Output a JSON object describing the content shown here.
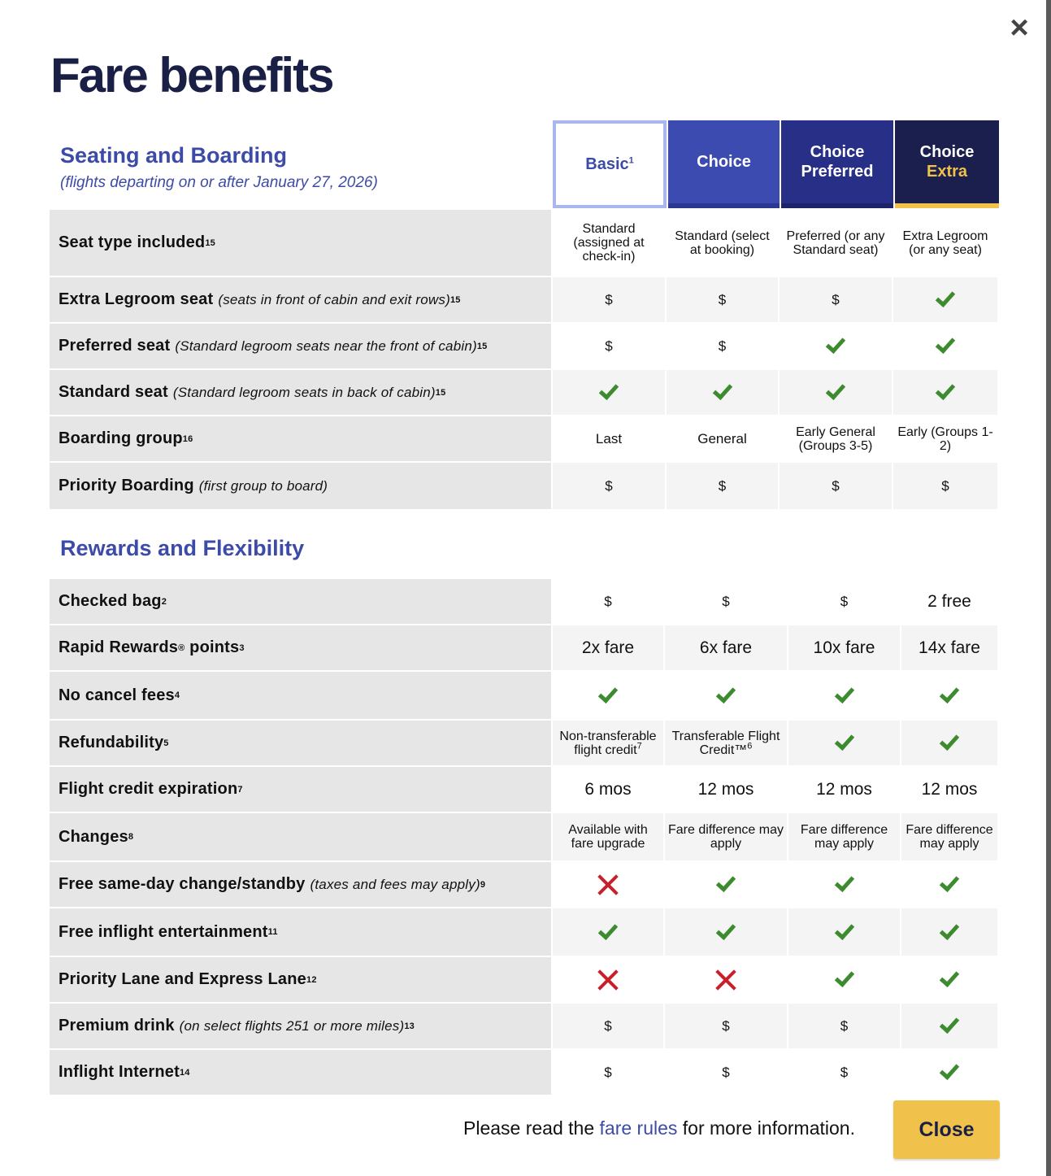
{
  "modal": {
    "title": "Fare benefits",
    "close_icon": "close-icon",
    "close_glyph": "×"
  },
  "fares": {
    "basic": "Basic",
    "basic_sup": "1",
    "choice": "Choice",
    "preferred_line1": "Choice",
    "preferred_line2": "Preferred",
    "extra_line1": "Choice",
    "extra_line2": "Extra"
  },
  "seating": {
    "title": "Seating and Boarding",
    "subtitle": "(flights departing on or after January 27, 2026)",
    "rows": [
      {
        "label": "Seat type included",
        "note": "",
        "sup": "15",
        "cells": [
          {
            "text": "Standard (assigned at check-in)"
          },
          {
            "text": "Standard (select at booking)"
          },
          {
            "text": "Preferred (or any Standard seat)"
          },
          {
            "text": "Extra Legroom (or any seat)"
          }
        ]
      },
      {
        "label": "Extra Legroom seat",
        "note": "(seats in front of cabin and exit rows)",
        "sup": "15",
        "cells": [
          {
            "text": "$"
          },
          {
            "text": "$"
          },
          {
            "text": "$"
          },
          {
            "icon": "check-icon"
          }
        ]
      },
      {
        "label": "Preferred seat",
        "note": "(Standard legroom seats near the front of cabin)",
        "sup": "15",
        "cells": [
          {
            "text": "$"
          },
          {
            "text": "$"
          },
          {
            "icon": "check-icon"
          },
          {
            "icon": "check-icon"
          }
        ]
      },
      {
        "label": "Standard seat",
        "note": "(Standard legroom seats in back of cabin)",
        "sup": "15",
        "cells": [
          {
            "icon": "check-icon"
          },
          {
            "icon": "check-icon"
          },
          {
            "icon": "check-icon"
          },
          {
            "icon": "check-icon"
          }
        ]
      },
      {
        "label": "Boarding group",
        "note": "",
        "sup": "16",
        "cells": [
          {
            "text": "Last"
          },
          {
            "text": "General"
          },
          {
            "text": "Early General (Groups 3-5)"
          },
          {
            "text": "Early (Groups 1-2)"
          }
        ]
      },
      {
        "label": "Priority Boarding",
        "note": "(first group to board)",
        "sup": "",
        "cells": [
          {
            "text": "$"
          },
          {
            "text": "$"
          },
          {
            "text": "$"
          },
          {
            "text": "$"
          }
        ]
      }
    ]
  },
  "rewards": {
    "title": "Rewards and Flexibility",
    "rows": [
      {
        "label": "Checked bag",
        "note": "",
        "sup": "2",
        "cells": [
          {
            "text": "$"
          },
          {
            "text": "$"
          },
          {
            "text": "$"
          },
          {
            "text": "2 free"
          }
        ]
      },
      {
        "label": "Rapid Rewards",
        "label_reg": "®",
        "label_tail": " points",
        "note": "",
        "sup": "3",
        "cells": [
          {
            "text": "2x fare"
          },
          {
            "text": "6x fare"
          },
          {
            "text": "10x fare"
          },
          {
            "text": "14x fare"
          }
        ]
      },
      {
        "label": "No cancel fees",
        "note": "",
        "sup": "4",
        "cells": [
          {
            "icon": "check-icon"
          },
          {
            "icon": "check-icon"
          },
          {
            "icon": "check-icon"
          },
          {
            "icon": "check-icon"
          }
        ]
      },
      {
        "label": "Refundability",
        "note": "",
        "sup": "5",
        "cells": [
          {
            "text": "Non-transferable flight credit",
            "sup": "7"
          },
          {
            "text": "Transferable Flight Credit™",
            "sup": "6"
          },
          {
            "icon": "check-icon"
          },
          {
            "icon": "check-icon"
          }
        ]
      },
      {
        "label": "Flight credit expiration",
        "note": "",
        "sup": "7",
        "cells": [
          {
            "text": "6 mos"
          },
          {
            "text": "12 mos"
          },
          {
            "text": "12 mos"
          },
          {
            "text": "12 mos"
          }
        ]
      },
      {
        "label": "Changes",
        "note": "",
        "sup": "8",
        "cells": [
          {
            "text": "Available with fare upgrade"
          },
          {
            "text": "Fare difference may apply"
          },
          {
            "text": "Fare difference may apply"
          },
          {
            "text": "Fare difference may apply"
          }
        ]
      },
      {
        "label": "Free same-day change/standby",
        "note": "(taxes and fees may apply)",
        "sup": "9",
        "cells": [
          {
            "icon": "cross-icon"
          },
          {
            "icon": "check-icon"
          },
          {
            "icon": "check-icon"
          },
          {
            "icon": "check-icon"
          }
        ]
      },
      {
        "label": "Free inflight entertainment",
        "note": "",
        "sup": "11",
        "cells": [
          {
            "icon": "check-icon"
          },
          {
            "icon": "check-icon"
          },
          {
            "icon": "check-icon"
          },
          {
            "icon": "check-icon"
          }
        ]
      },
      {
        "label": "Priority Lane and Express Lane",
        "note": "",
        "sup": "12",
        "cells": [
          {
            "icon": "cross-icon"
          },
          {
            "icon": "cross-icon"
          },
          {
            "icon": "check-icon"
          },
          {
            "icon": "check-icon"
          }
        ]
      },
      {
        "label": "Premium drink",
        "note": "(on select flights 251 or more miles)",
        "sup": "13",
        "cells": [
          {
            "text": "$"
          },
          {
            "text": "$"
          },
          {
            "text": "$"
          },
          {
            "icon": "check-icon"
          }
        ]
      },
      {
        "label": "Inflight Internet",
        "note": "",
        "sup": "14",
        "cells": [
          {
            "text": "$"
          },
          {
            "text": "$"
          },
          {
            "text": "$"
          },
          {
            "icon": "check-icon"
          }
        ]
      }
    ]
  },
  "footer": {
    "text_before": "Please read the ",
    "link": "fare rules",
    "text_after": " for more information.",
    "close_label": "Close"
  }
}
